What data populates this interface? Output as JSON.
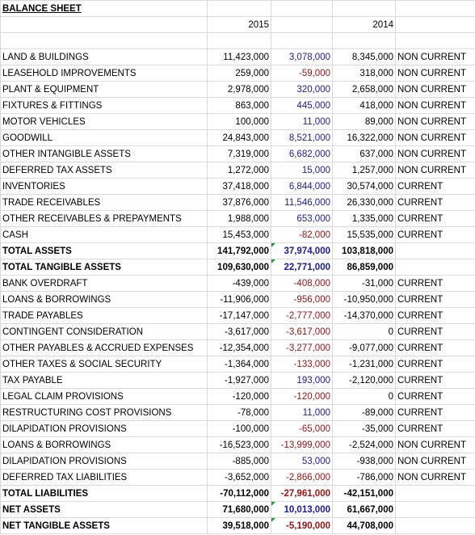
{
  "title": "BALANCE SHEET",
  "header": {
    "year_current": "2015",
    "year_prior": "2014"
  },
  "rows": [
    {
      "label": "LAND & BUILDINGS",
      "y2015": "11,423,000",
      "change": "3,078,000",
      "y2014": "8,345,000",
      "class": "NON CURRENT"
    },
    {
      "label": "LEASEHOLD IMPROVEMENTS",
      "y2015": "259,000",
      "change": "-59,000",
      "y2014": "318,000",
      "class": "NON CURRENT"
    },
    {
      "label": "PLANT & EQUIPMENT",
      "y2015": "2,978,000",
      "change": "320,000",
      "y2014": "2,658,000",
      "class": "NON CURRENT"
    },
    {
      "label": "FIXTURES & FITTINGS",
      "y2015": "863,000",
      "change": "445,000",
      "y2014": "418,000",
      "class": "NON CURRENT"
    },
    {
      "label": "MOTOR VEHICLES",
      "y2015": "100,000",
      "change": "11,000",
      "y2014": "89,000",
      "class": "NON CURRENT"
    },
    {
      "label": "GOODWILL",
      "y2015": "24,843,000",
      "change": "8,521,000",
      "y2014": "16,322,000",
      "class": "NON CURRENT"
    },
    {
      "label": "OTHER INTANGIBLE ASSETS",
      "y2015": "7,319,000",
      "change": "6,682,000",
      "y2014": "637,000",
      "class": "NON CURRENT"
    },
    {
      "label": "DEFERRED TAX ASSETS",
      "y2015": "1,272,000",
      "change": "15,000",
      "y2014": "1,257,000",
      "class": "NON CURRENT"
    },
    {
      "label": "INVENTORIES",
      "y2015": "37,418,000",
      "change": "6,844,000",
      "y2014": "30,574,000",
      "class": "CURRENT"
    },
    {
      "label": "TRADE RECEIVABLES",
      "y2015": "37,876,000",
      "change": "11,546,000",
      "y2014": "26,330,000",
      "class": "CURRENT"
    },
    {
      "label": "OTHER RECEIVABLES & PREPAYMENTS",
      "y2015": "1,988,000",
      "change": "653,000",
      "y2014": "1,335,000",
      "class": "CURRENT"
    },
    {
      "label": "CASH",
      "y2015": "15,453,000",
      "change": "-82,000",
      "y2014": "15,535,000",
      "class": "CURRENT"
    },
    {
      "label": "TOTAL ASSETS",
      "y2015": "141,792,000",
      "change": "37,974,000",
      "y2014": "103,818,000",
      "bold": true,
      "flag": true
    },
    {
      "label": "TOTAL TANGIBLE ASSETS",
      "y2015": "109,630,000",
      "change": "22,771,000",
      "y2014": "86,859,000",
      "bold": true,
      "flag": true
    },
    {
      "label": "BANK OVERDRAFT",
      "y2015": "-439,000",
      "change": "-408,000",
      "y2014": "-31,000",
      "class": "CURRENT"
    },
    {
      "label": "LOANS & BORROWINGS",
      "y2015": "-11,906,000",
      "change": "-956,000",
      "y2014": "-10,950,000",
      "class": "CURRENT"
    },
    {
      "label": "TRADE PAYABLES",
      "y2015": "-17,147,000",
      "change": "-2,777,000",
      "y2014": "-14,370,000",
      "class": "CURRENT"
    },
    {
      "label": "CONTINGENT CONSIDERATION",
      "y2015": "-3,617,000",
      "change": "-3,617,000",
      "y2014": "0",
      "class": "CURRENT"
    },
    {
      "label": "OTHER PAYABLES & ACCRUED EXPENSES",
      "y2015": "-12,354,000",
      "change": "-3,277,000",
      "y2014": "-9,077,000",
      "class": "CURRENT"
    },
    {
      "label": "OTHER TAXES & SOCIAL SECURITY",
      "y2015": "-1,364,000",
      "change": "-133,000",
      "y2014": "-1,231,000",
      "class": "CURRENT"
    },
    {
      "label": "TAX PAYABLE",
      "y2015": "-1,927,000",
      "change": "193,000",
      "y2014": "-2,120,000",
      "class": "CURRENT"
    },
    {
      "label": "LEGAL CLAIM PROVISIONS",
      "y2015": "-120,000",
      "change": "-120,000",
      "y2014": "0",
      "class": "CURRENT"
    },
    {
      "label": "RESTRUCTURING COST PROVISIONS",
      "y2015": "-78,000",
      "change": "11,000",
      "y2014": "-89,000",
      "class": "CURRENT"
    },
    {
      "label": "DILAPIDATION PROVISIONS",
      "y2015": "-100,000",
      "change": "-65,000",
      "y2014": "-35,000",
      "class": "CURRENT"
    },
    {
      "label": "LOANS & BORROWINGS",
      "y2015": "-16,523,000",
      "change": "-13,999,000",
      "y2014": "-2,524,000",
      "class": "NON CURRENT"
    },
    {
      "label": "DILAPIDATION PROVISIONS",
      "y2015": "-885,000",
      "change": "53,000",
      "y2014": "-938,000",
      "class": "NON CURRENT"
    },
    {
      "label": "DEFERRED TAX LIABILITIES",
      "y2015": "-3,652,000",
      "change": "-2,866,000",
      "y2014": "-786,000",
      "class": "NON CURRENT"
    },
    {
      "label": "TOTAL LIABILITIES",
      "y2015": "-70,112,000",
      "change": "-27,961,000",
      "y2014": "-42,151,000",
      "bold": true
    },
    {
      "label": "NET ASSETS",
      "y2015": "71,680,000",
      "change": "10,013,000",
      "y2014": "61,667,000",
      "bold": true,
      "flag": true
    },
    {
      "label": "NET TANGIBLE ASSETS",
      "y2015": "39,518,000",
      "change": "-5,190,000",
      "y2014": "44,708,000",
      "bold": true,
      "flag": true
    }
  ]
}
